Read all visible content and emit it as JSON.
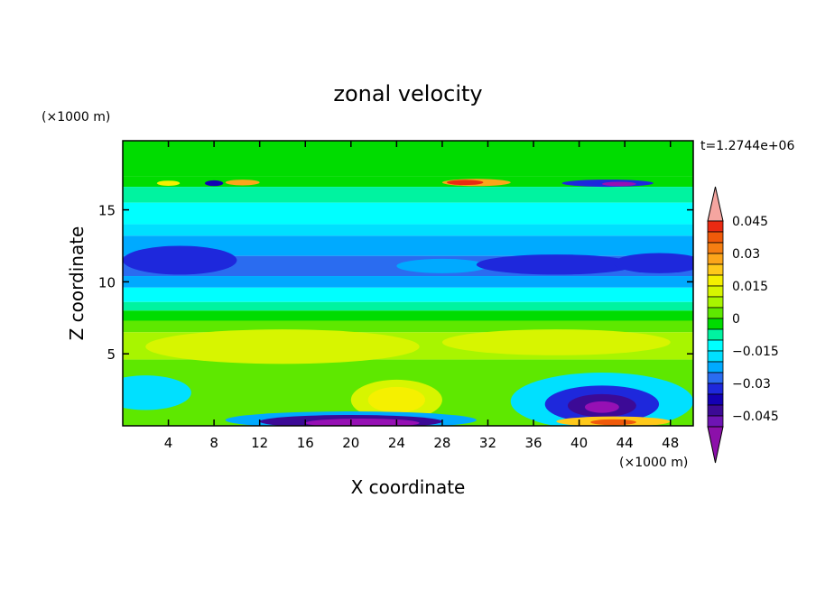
{
  "chart_data": {
    "type": "heatmap",
    "title": "zonal velocity",
    "xlabel": "X coordinate",
    "ylabel": "Z coordinate",
    "x_multiplier": "(×1000 m)",
    "y_multiplier": "(×1000 m)",
    "time_label": "t=1.2744e+06",
    "xlim": [
      0,
      50
    ],
    "ylim": [
      0,
      19.8
    ],
    "x_ticks": [
      4,
      8,
      12,
      16,
      20,
      24,
      28,
      32,
      36,
      40,
      44,
      48
    ],
    "y_ticks": [
      5,
      10,
      15
    ],
    "colorbar": {
      "levels": [
        -0.05,
        -0.045,
        -0.04,
        -0.035,
        -0.03,
        -0.025,
        -0.02,
        -0.015,
        -0.01,
        -0.005,
        0,
        0.005,
        0.01,
        0.015,
        0.02,
        0.025,
        0.03,
        0.035,
        0.04,
        0.045,
        0.05
      ],
      "labels": [
        "0.045",
        "0.03",
        "0.015",
        "0",
        "−0.015",
        "−0.03",
        "−0.045"
      ],
      "label_values": [
        0.045,
        0.03,
        0.015,
        0,
        -0.015,
        -0.03,
        -0.045
      ],
      "colors": [
        "#f5a5a0",
        "#ea2a12",
        "#f05a0a",
        "#f57e12",
        "#fca51a",
        "#ffc91a",
        "#f5f000",
        "#d7f500",
        "#a8f500",
        "#5ee800",
        "#00dc00",
        "#00f3a0",
        "#00ffff",
        "#00e0ff",
        "#00aaff",
        "#2a6cf0",
        "#1e28dc",
        "#1400b4",
        "#3c0a96",
        "#6e14b4",
        "#9610b4"
      ],
      "over_color": "#f5a5a0",
      "under_color": "#8c10aa"
    },
    "bands": [
      {
        "z": [
          17.3,
          19.8
        ],
        "value": 0.003
      },
      {
        "z": [
          16.6,
          17.3
        ],
        "value": 0.0
      },
      {
        "z": [
          15.5,
          16.6
        ],
        "value": -0.003
      },
      {
        "z": [
          14.0,
          15.5
        ],
        "value": -0.01
      },
      {
        "z": [
          13.2,
          14.0
        ],
        "value": -0.013
      },
      {
        "z": [
          11.8,
          13.2
        ],
        "value": -0.017
      },
      {
        "z": [
          10.4,
          11.8
        ],
        "value": -0.022
      },
      {
        "z": [
          9.6,
          10.4
        ],
        "value": -0.017
      },
      {
        "z": [
          8.6,
          9.6
        ],
        "value": -0.01
      },
      {
        "z": [
          8.0,
          8.6
        ],
        "value": -0.003
      },
      {
        "z": [
          7.3,
          8.0
        ],
        "value": 0.003
      },
      {
        "z": [
          6.5,
          7.3
        ],
        "value": 0.008
      },
      {
        "z": [
          4.6,
          6.5
        ],
        "value": 0.012
      },
      {
        "z": [
          0.0,
          4.6
        ],
        "value": 0.006
      }
    ],
    "features": [
      {
        "kind": "ellipse",
        "x": 28,
        "z": 11.1,
        "rx": 4,
        "rz": 0.5,
        "value": -0.017
      },
      {
        "kind": "ellipse",
        "x": 5,
        "z": 11.5,
        "rx": 5,
        "rz": 1.0,
        "value": -0.027
      },
      {
        "kind": "ellipse",
        "x": 38,
        "z": 11.2,
        "rx": 7,
        "rz": 0.7,
        "value": -0.027
      },
      {
        "kind": "ellipse",
        "x": 47,
        "z": 11.3,
        "rx": 4,
        "rz": 0.7,
        "value": -0.027
      },
      {
        "kind": "ellipse",
        "x": 14,
        "z": 5.5,
        "rx": 12,
        "rz": 1.2,
        "value": 0.017
      },
      {
        "kind": "ellipse",
        "x": 38,
        "z": 5.8,
        "rx": 10,
        "rz": 0.9,
        "value": 0.017
      },
      {
        "kind": "ellipse",
        "x": 24,
        "z": 1.8,
        "rx": 4,
        "rz": 1.4,
        "value": 0.017
      },
      {
        "kind": "ellipse",
        "x": 24,
        "z": 1.8,
        "rx": 2.5,
        "rz": 0.9,
        "value": 0.022
      },
      {
        "kind": "ellipse",
        "x": 2,
        "z": 2.3,
        "rx": 4,
        "rz": 1.2,
        "value": -0.013
      },
      {
        "kind": "ellipse",
        "x": 42,
        "z": 1.7,
        "rx": 8,
        "rz": 2.0,
        "value": -0.013
      },
      {
        "kind": "ellipse",
        "x": 42,
        "z": 1.5,
        "rx": 5,
        "rz": 1.3,
        "value": -0.027
      },
      {
        "kind": "ellipse",
        "x": 42,
        "z": 1.4,
        "rx": 3,
        "rz": 0.8,
        "value": -0.037
      },
      {
        "kind": "ellipse",
        "x": 42,
        "z": 1.3,
        "rx": 1.5,
        "rz": 0.4,
        "value": -0.047
      },
      {
        "kind": "ellipse",
        "x": 43,
        "z": 0.3,
        "rx": 5,
        "rz": 0.35,
        "value": 0.027
      },
      {
        "kind": "ellipse",
        "x": 43,
        "z": 0.25,
        "rx": 2,
        "rz": 0.2,
        "value": 0.042
      },
      {
        "kind": "ellipse",
        "x": 20,
        "z": 0.4,
        "rx": 11,
        "rz": 0.6,
        "value": -0.02
      },
      {
        "kind": "ellipse",
        "x": 20,
        "z": 0.3,
        "rx": 8,
        "rz": 0.45,
        "value": -0.037
      },
      {
        "kind": "ellipse",
        "x": 21,
        "z": 0.2,
        "rx": 5,
        "rz": 0.3,
        "value": -0.047
      },
      {
        "kind": "ellipse",
        "x": 31,
        "z": 16.9,
        "rx": 3,
        "rz": 0.25,
        "value": 0.03
      },
      {
        "kind": "ellipse",
        "x": 30,
        "z": 16.9,
        "rx": 1.6,
        "rz": 0.18,
        "value": 0.047
      },
      {
        "kind": "ellipse",
        "x": 42.5,
        "z": 16.85,
        "rx": 4,
        "rz": 0.25,
        "value": -0.03
      },
      {
        "kind": "ellipse",
        "x": 43.5,
        "z": 16.8,
        "rx": 1.5,
        "rz": 0.15,
        "value": -0.047
      },
      {
        "kind": "ellipse",
        "x": 8,
        "z": 16.85,
        "rx": 0.8,
        "rz": 0.2,
        "value": -0.035
      },
      {
        "kind": "ellipse",
        "x": 10.5,
        "z": 16.9,
        "rx": 1.5,
        "rz": 0.2,
        "value": 0.03
      },
      {
        "kind": "ellipse",
        "x": 4,
        "z": 16.85,
        "rx": 1.0,
        "rz": 0.18,
        "value": 0.02
      }
    ]
  }
}
